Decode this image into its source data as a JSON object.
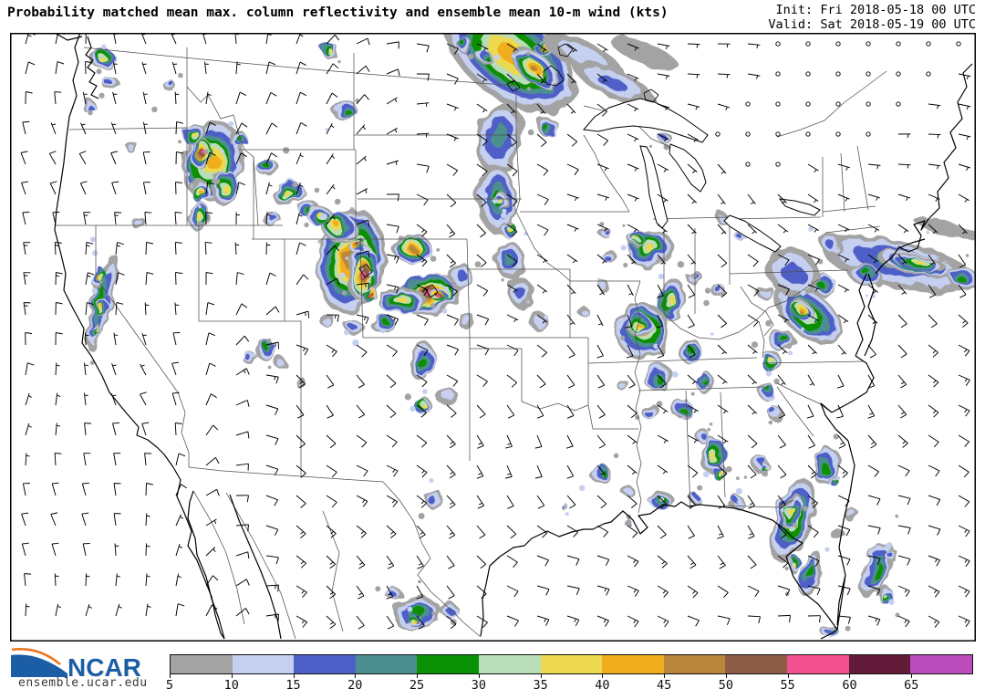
{
  "header": {
    "title": "Probability matched mean max. column reflectivity and ensemble mean 10-m wind (kts)",
    "init": "Init: Fri 2018-05-18 00 UTC",
    "valid": "Valid: Sat 2018-05-19 00 UTC"
  },
  "branding": {
    "org": "NCAR",
    "url": "ensemble.ucar.edu"
  },
  "colorbar": {
    "tick_labels": [
      "5",
      "10",
      "15",
      "20",
      "25",
      "30",
      "35",
      "40",
      "45",
      "50",
      "55",
      "60",
      "65"
    ],
    "segment_colors": [
      "#a3a3a3",
      "#c5cff0",
      "#4f5fc8",
      "#4b8f8f",
      "#0a9005",
      "#b9dcb9",
      "#edd94f",
      "#f0ad1b",
      "#b8873d",
      "#8d5c46",
      "#f2508e",
      "#621a39",
      "#bb4cbb"
    ]
  },
  "map": {
    "land_color": "#ffffff",
    "state_line_color": "#4f4f4f",
    "coast_color": "#000000",
    "barb_color": "#000000"
  }
}
